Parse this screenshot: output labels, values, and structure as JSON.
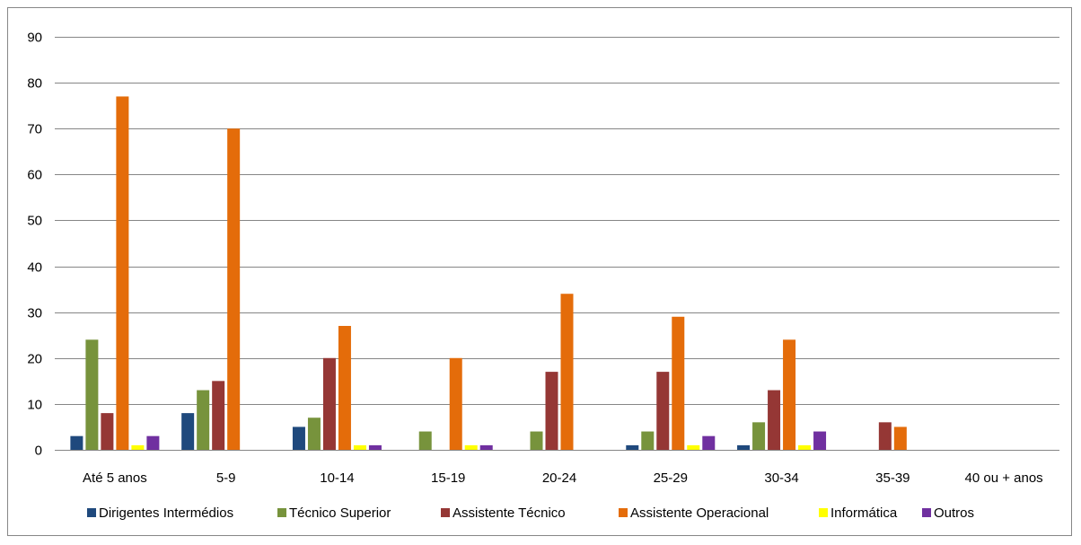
{
  "chart_data": {
    "type": "bar",
    "title": "",
    "xlabel": "",
    "ylabel": "",
    "ylim": [
      0,
      90
    ],
    "yticks": [
      "0",
      "10",
      "20",
      "30",
      "40",
      "50",
      "60",
      "70",
      "80",
      "90"
    ],
    "grid": true,
    "legend_position": "bottom",
    "categories": [
      "Até 5 anos",
      "5-9",
      "10-14",
      "15-19",
      "20-24",
      "25-29",
      "30-34",
      "35-39",
      "40 ou + anos"
    ],
    "series": [
      {
        "name": "Dirigentes Intermédios",
        "color": "#1F497D",
        "values": [
          3,
          8,
          5,
          0,
          0,
          1,
          1,
          0,
          0
        ]
      },
      {
        "name": "Técnico Superior",
        "color": "#77933C",
        "values": [
          24,
          13,
          7,
          4,
          4,
          4,
          6,
          0,
          0
        ]
      },
      {
        "name": "Assistente Técnico",
        "color": "#953735",
        "values": [
          8,
          15,
          20,
          0,
          17,
          17,
          13,
          6,
          0
        ]
      },
      {
        "name": "Assistente Operacional",
        "color": "#E46C0A",
        "values": [
          77,
          70,
          27,
          20,
          34,
          29,
          24,
          5,
          0
        ]
      },
      {
        "name": "Informática",
        "color": "#FFFF00",
        "values": [
          1,
          0,
          1,
          1,
          0,
          1,
          1,
          0,
          0
        ]
      },
      {
        "name": "Outros",
        "color": "#7030A0",
        "values": [
          3,
          0,
          1,
          1,
          0,
          3,
          4,
          0,
          0
        ]
      }
    ]
  }
}
